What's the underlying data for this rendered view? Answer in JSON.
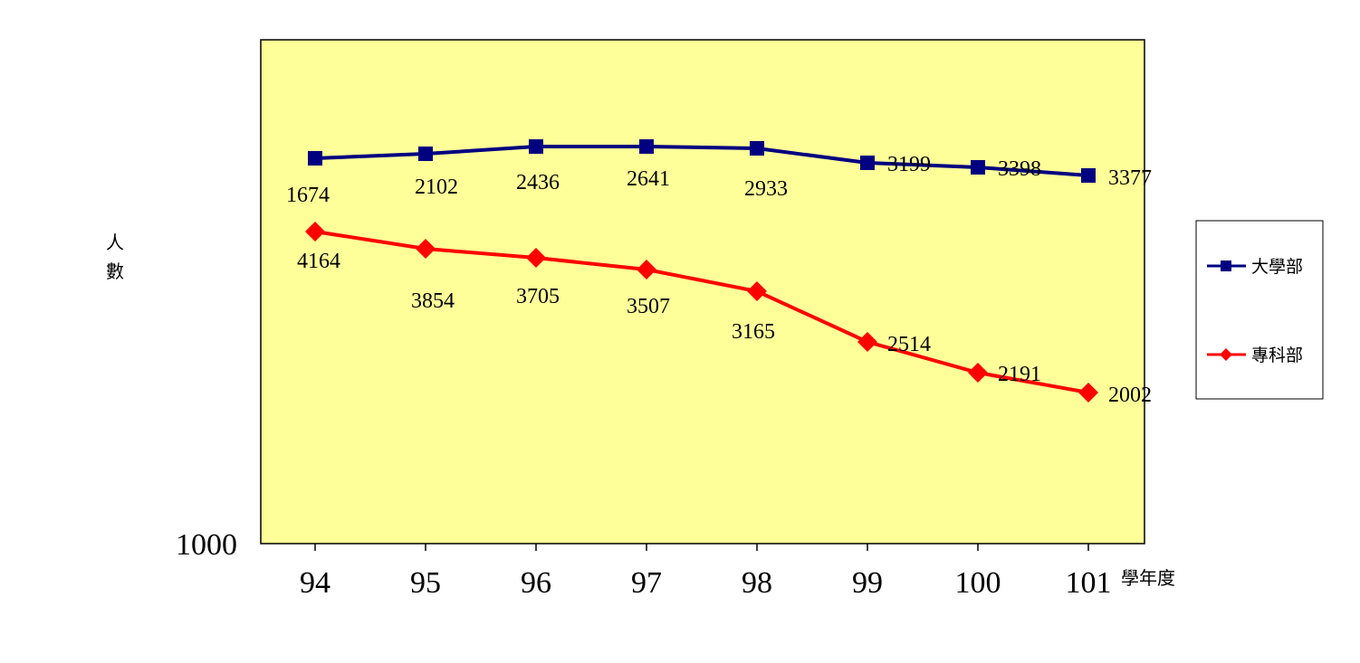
{
  "chart_data": {
    "type": "line",
    "title": "",
    "xlabel": "學年度",
    "ylabel": "人數",
    "categories": [
      "94",
      "95",
      "96",
      "97",
      "98",
      "99",
      "100",
      "101"
    ],
    "y_axis_tick_label": "1000",
    "series": [
      {
        "name": "大學部",
        "color": "#000080",
        "marker": "square",
        "values": [
          1674,
          2102,
          2436,
          2641,
          2933,
          3199,
          3398,
          3377
        ]
      },
      {
        "name": "專科部",
        "color": "#ff0000",
        "marker": "diamond",
        "values": [
          4164,
          3854,
          3705,
          3507,
          3165,
          2514,
          2191,
          2002
        ]
      }
    ],
    "plot_background": "#ffff99",
    "grid": false,
    "legend_position": "right"
  }
}
